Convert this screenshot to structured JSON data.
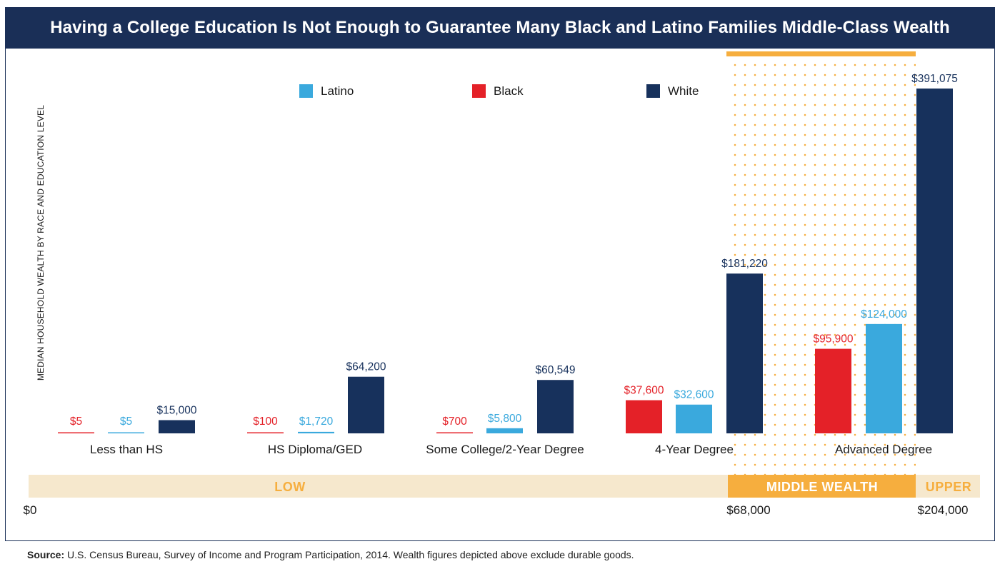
{
  "title": "Having a College Education Is Not Enough to Guarantee Many Black and Latino Families Middle-Class Wealth",
  "source": {
    "label": "Source:",
    "text": " U.S. Census Bureau, Survey of Income and Program Participation, 2014. Wealth figures depicted above exclude durable goods."
  },
  "colors": {
    "navy": "#1a2f57",
    "latino": "#3aa9dd",
    "black": "#e42128",
    "white": "#17315c",
    "orange": "#f6ae3e",
    "beige": "#f6e8cd"
  },
  "chart_data": {
    "type": "bar",
    "ylabel": "MEDIAN HOUSEHOLD WEALTH BY RACE AND EDUCATION LEVEL",
    "legend": [
      {
        "name": "Latino",
        "color": "#3aa9dd"
      },
      {
        "name": "Black",
        "color": "#e42128"
      },
      {
        "name": "White",
        "color": "#17315c"
      }
    ],
    "groups": [
      {
        "category": "Less than HS",
        "bars": [
          {
            "series": "Black",
            "value": 5,
            "label": "$5"
          },
          {
            "series": "Latino",
            "value": 5,
            "label": "$5"
          },
          {
            "series": "White",
            "value": 15000,
            "label": "$15,000"
          }
        ]
      },
      {
        "category": "HS Diploma/GED",
        "bars": [
          {
            "series": "Black",
            "value": 100,
            "label": "$100"
          },
          {
            "series": "Latino",
            "value": 1720,
            "label": "$1,720"
          },
          {
            "series": "White",
            "value": 64200,
            "label": "$64,200"
          }
        ]
      },
      {
        "category": "Some College/2-Year Degree",
        "bars": [
          {
            "series": "Black",
            "value": 700,
            "label": "$700"
          },
          {
            "series": "Latino",
            "value": 5800,
            "label": "$5,800"
          },
          {
            "series": "White",
            "value": 60549,
            "label": "$60,549"
          }
        ]
      },
      {
        "category": "4-Year Degree",
        "bars": [
          {
            "series": "Black",
            "value": 37600,
            "label": "$37,600"
          },
          {
            "series": "Latino",
            "value": 32600,
            "label": "$32,600"
          },
          {
            "series": "White",
            "value": 181220,
            "label": "$181,220"
          }
        ]
      },
      {
        "category": "Advanced Degree",
        "bars": [
          {
            "series": "Black",
            "value": 95900,
            "label": "$95,900"
          },
          {
            "series": "Latino",
            "value": 124000,
            "label": "$124,000"
          },
          {
            "series": "White",
            "value": 391075,
            "label": "$391,075"
          }
        ]
      }
    ],
    "wealth_bands": [
      {
        "name": "LOW",
        "from": 0,
        "to": 68000
      },
      {
        "name": "MIDDLE  WEALTH",
        "from": 68000,
        "to": 204000
      },
      {
        "name": "UPPER",
        "from": 204000,
        "to": null
      }
    ],
    "ticks": [
      "$0",
      "$68,000",
      "$204,000"
    ]
  }
}
